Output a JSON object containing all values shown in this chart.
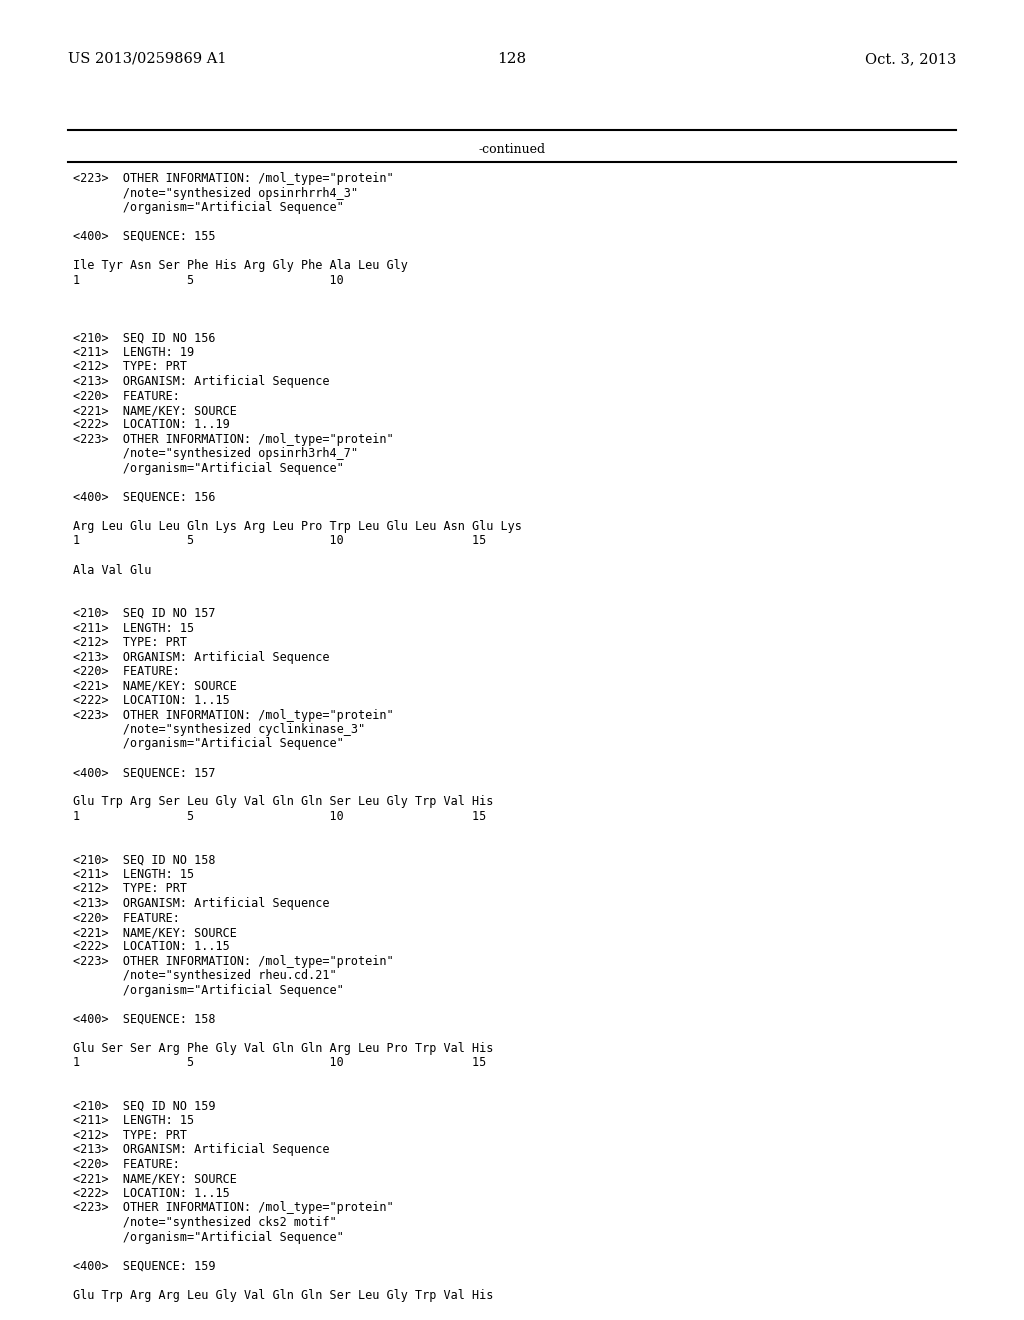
{
  "header_left": "US 2013/0259869 A1",
  "header_right": "Oct. 3, 2013",
  "page_number": "128",
  "continued_label": "-continued",
  "background_color": "#ffffff",
  "text_color": "#000000",
  "lines": [
    {
      "text": "<223>  OTHER INFORMATION: /mol_type=\"protein\""
    },
    {
      "text": "       /note=\"synthesized opsinrhrrh4_3\""
    },
    {
      "text": "       /organism=\"Artificial Sequence\""
    },
    {
      "text": ""
    },
    {
      "text": "<400>  SEQUENCE: 155"
    },
    {
      "text": ""
    },
    {
      "text": "Ile Tyr Asn Ser Phe His Arg Gly Phe Ala Leu Gly"
    },
    {
      "text": "1               5                   10"
    },
    {
      "text": ""
    },
    {
      "text": ""
    },
    {
      "text": ""
    },
    {
      "text": "<210>  SEQ ID NO 156"
    },
    {
      "text": "<211>  LENGTH: 19"
    },
    {
      "text": "<212>  TYPE: PRT"
    },
    {
      "text": "<213>  ORGANISM: Artificial Sequence"
    },
    {
      "text": "<220>  FEATURE:"
    },
    {
      "text": "<221>  NAME/KEY: SOURCE"
    },
    {
      "text": "<222>  LOCATION: 1..19"
    },
    {
      "text": "<223>  OTHER INFORMATION: /mol_type=\"protein\""
    },
    {
      "text": "       /note=\"synthesized opsinrh3rh4_7\""
    },
    {
      "text": "       /organism=\"Artificial Sequence\""
    },
    {
      "text": ""
    },
    {
      "text": "<400>  SEQUENCE: 156"
    },
    {
      "text": ""
    },
    {
      "text": "Arg Leu Glu Leu Gln Lys Arg Leu Pro Trp Leu Glu Leu Asn Glu Lys"
    },
    {
      "text": "1               5                   10                  15"
    },
    {
      "text": ""
    },
    {
      "text": "Ala Val Glu"
    },
    {
      "text": ""
    },
    {
      "text": ""
    },
    {
      "text": "<210>  SEQ ID NO 157"
    },
    {
      "text": "<211>  LENGTH: 15"
    },
    {
      "text": "<212>  TYPE: PRT"
    },
    {
      "text": "<213>  ORGANISM: Artificial Sequence"
    },
    {
      "text": "<220>  FEATURE:"
    },
    {
      "text": "<221>  NAME/KEY: SOURCE"
    },
    {
      "text": "<222>  LOCATION: 1..15"
    },
    {
      "text": "<223>  OTHER INFORMATION: /mol_type=\"protein\""
    },
    {
      "text": "       /note=\"synthesized cyclinkinase_3\""
    },
    {
      "text": "       /organism=\"Artificial Sequence\""
    },
    {
      "text": ""
    },
    {
      "text": "<400>  SEQUENCE: 157"
    },
    {
      "text": ""
    },
    {
      "text": "Glu Trp Arg Ser Leu Gly Val Gln Gln Ser Leu Gly Trp Val His"
    },
    {
      "text": "1               5                   10                  15"
    },
    {
      "text": ""
    },
    {
      "text": ""
    },
    {
      "text": "<210>  SEQ ID NO 158"
    },
    {
      "text": "<211>  LENGTH: 15"
    },
    {
      "text": "<212>  TYPE: PRT"
    },
    {
      "text": "<213>  ORGANISM: Artificial Sequence"
    },
    {
      "text": "<220>  FEATURE:"
    },
    {
      "text": "<221>  NAME/KEY: SOURCE"
    },
    {
      "text": "<222>  LOCATION: 1..15"
    },
    {
      "text": "<223>  OTHER INFORMATION: /mol_type=\"protein\""
    },
    {
      "text": "       /note=\"synthesized rheu.cd.21\""
    },
    {
      "text": "       /organism=\"Artificial Sequence\""
    },
    {
      "text": ""
    },
    {
      "text": "<400>  SEQUENCE: 158"
    },
    {
      "text": ""
    },
    {
      "text": "Glu Ser Ser Arg Phe Gly Val Gln Gln Arg Leu Pro Trp Val His"
    },
    {
      "text": "1               5                   10                  15"
    },
    {
      "text": ""
    },
    {
      "text": ""
    },
    {
      "text": "<210>  SEQ ID NO 159"
    },
    {
      "text": "<211>  LENGTH: 15"
    },
    {
      "text": "<212>  TYPE: PRT"
    },
    {
      "text": "<213>  ORGANISM: Artificial Sequence"
    },
    {
      "text": "<220>  FEATURE:"
    },
    {
      "text": "<221>  NAME/KEY: SOURCE"
    },
    {
      "text": "<222>  LOCATION: 1..15"
    },
    {
      "text": "<223>  OTHER INFORMATION: /mol_type=\"protein\""
    },
    {
      "text": "       /note=\"synthesized cks2 motif\""
    },
    {
      "text": "       /organism=\"Artificial Sequence\""
    },
    {
      "text": ""
    },
    {
      "text": "<400>  SEQUENCE: 159"
    },
    {
      "text": ""
    },
    {
      "text": "Glu Trp Arg Arg Leu Gly Val Gln Gln Ser Leu Gly Trp Val His"
    }
  ]
}
